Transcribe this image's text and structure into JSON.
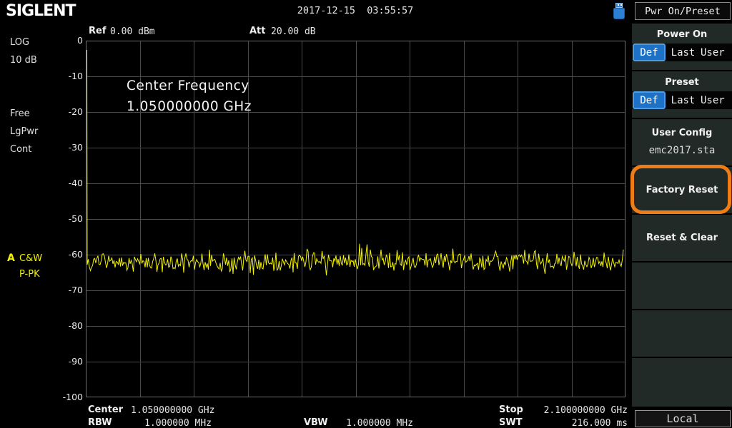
{
  "header": {
    "logo": "SIGLENT",
    "datetime": "2017-12-15  03:55:57"
  },
  "top_info": {
    "ref_label": "Ref",
    "ref_value": "0.00 dBm",
    "att_label": "Att",
    "att_value": "20.00 dB"
  },
  "left_panel": {
    "items": [
      "LOG",
      "10 dB",
      "Free",
      "LgPwr",
      "Cont"
    ],
    "trace_indicator": {
      "trace_letter": "A",
      "mode": "C&W",
      "detector": "P-PK"
    }
  },
  "annotation": {
    "line1": "Center Frequency",
    "line2": "1.050000000 GHz"
  },
  "chart_data": {
    "type": "line",
    "title": "Spectrum analyzer trace A",
    "y_ticks": [
      "0",
      "-10",
      "-20",
      "-30",
      "-40",
      "-50",
      "-60",
      "-70",
      "-80",
      "-90",
      "-100"
    ],
    "ylim": [
      -100,
      0
    ],
    "y_unit": "dBm",
    "x_start": "0 Hz",
    "x_center": "1.050000000 GHz",
    "x_stop": "2.100000000 GHz",
    "x_divisions": 10,
    "y_divisions": 10,
    "noise_floor_dbm": -62,
    "noise_std_db": 1.6,
    "spike": {
      "x_frac": 0.0,
      "peak_dbm": -2.6
    },
    "trace_color": "#f2f200",
    "grid": true,
    "grid_color": "#4a4a4a",
    "border_color": "#6e6e6e",
    "seed": 20171215
  },
  "footer": {
    "center_label": "Center",
    "center_value": "1.050000000 GHz",
    "rbw_label": "RBW",
    "rbw_value": "1.000000 MHz",
    "vbw_label": "VBW",
    "vbw_value": "1.000000 MHz",
    "stop_label": "Stop",
    "stop_value": "2.100000000 GHz",
    "swt_label": "SWT",
    "swt_value": "216.000 ms"
  },
  "sidebar": {
    "header": "Pwr On/Preset",
    "power_on": {
      "title": "Power On",
      "options": [
        "Def",
        "Last",
        "User"
      ],
      "selected": "Def"
    },
    "preset": {
      "title": "Preset",
      "options": [
        "Def",
        "Last",
        "User"
      ],
      "selected": "Def"
    },
    "user_config": {
      "title": "User Config",
      "value": "emc2017.sta"
    },
    "factory_reset": {
      "label": "Factory Reset",
      "highlighted": true,
      "highlight_color": "#ed7d18"
    },
    "reset_clear": {
      "label": "Reset & Clear"
    },
    "local_label": "Local"
  },
  "colors": {
    "accent_blue": "#1d72c8",
    "trace_yellow": "#f2f200",
    "highlight_orange": "#ed7d18",
    "cell_bg": "#222a27"
  }
}
